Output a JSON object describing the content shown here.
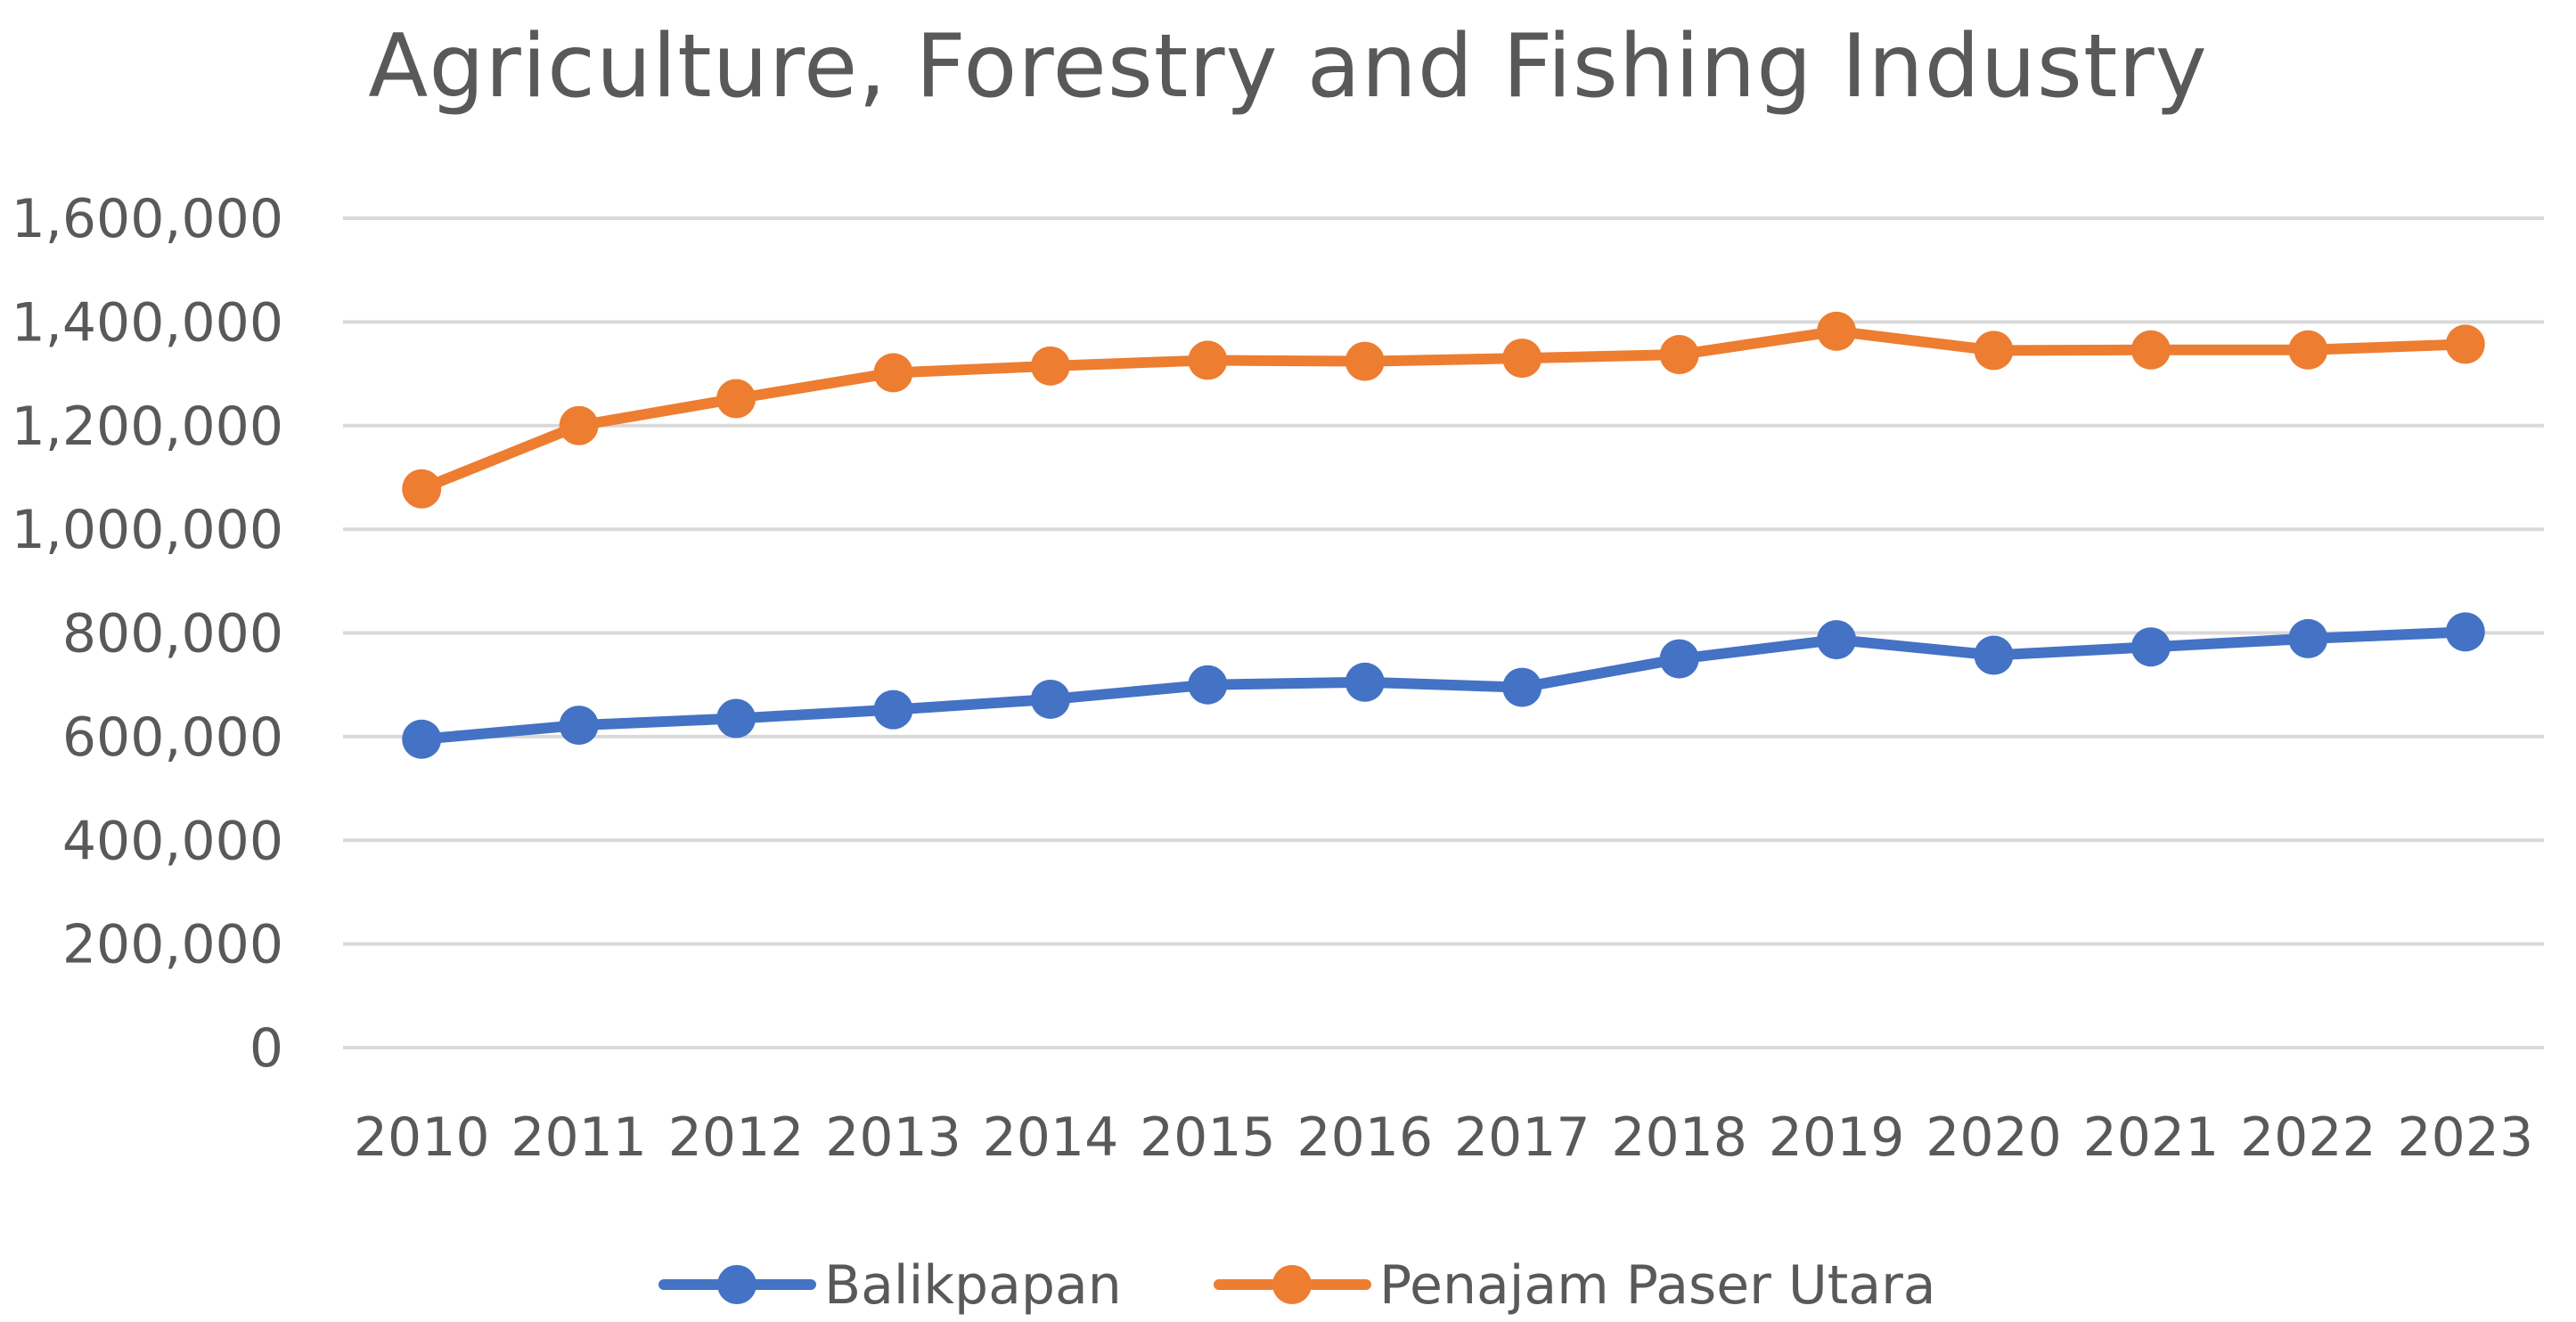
{
  "chart_data": {
    "type": "line",
    "title": "Agriculture, Forestry and Fishing Industry",
    "xlabel": "",
    "ylabel": "",
    "x": [
      "2010",
      "2011",
      "2012",
      "2013",
      "2014",
      "2015",
      "2016",
      "2017",
      "2018",
      "2019",
      "2020",
      "2021",
      "2022",
      "2023"
    ],
    "ylim": [
      0,
      1600000
    ],
    "yticks": [
      0,
      200000,
      400000,
      600000,
      800000,
      1000000,
      1200000,
      1400000,
      1600000
    ],
    "ytick_labels": [
      "0",
      "200,000",
      "400,000",
      "600,000",
      "800,000",
      "1,000,000",
      "1,200,000",
      "1,400,000",
      "1,600,000"
    ],
    "grid": "horizontal",
    "legend_position": "bottom",
    "series": [
      {
        "name": "Balikpapan",
        "color": "#4472C4",
        "marker": "circle",
        "values": [
          595000,
          622000,
          635000,
          652000,
          672000,
          700000,
          705000,
          695000,
          750000,
          787000,
          757000,
          773000,
          789000,
          802000
        ]
      },
      {
        "name": "Penajam Paser Utara",
        "color": "#ED7D31",
        "marker": "circle",
        "values": [
          1078000,
          1200000,
          1252000,
          1302000,
          1315000,
          1326000,
          1324000,
          1330000,
          1337000,
          1382000,
          1345000,
          1346000,
          1346000,
          1357000
        ]
      }
    ],
    "gridline_color": "#D9D9D9",
    "text_color": "#595959"
  }
}
